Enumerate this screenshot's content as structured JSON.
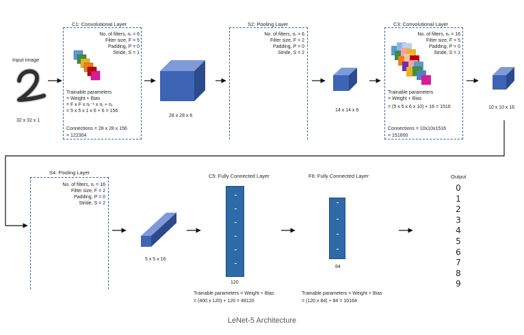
{
  "input": {
    "label": "Input image",
    "size": "32 x 32 x 1"
  },
  "c1": {
    "title": "C1: Convolutional Layer",
    "params": [
      "No. of filters, nᵣ = 6",
      "Filter size, F = 5",
      "Padding, P = 0",
      "Stride, S = 1"
    ],
    "trainable": [
      "Trainable parameters",
      "= Weight + Bias",
      "= F x F x nᵣ⁻¹ x  nᵣ + nᵣ",
      "= 5 x 5 x 1 x 6 + 6 = 156"
    ],
    "connections": [
      "Connections = 28 x 28 x 156",
      "= 122304"
    ],
    "output_size": "28 x 28 x 6"
  },
  "s2": {
    "title": "S2: Pooling Layer",
    "params": [
      "No. of filters, nᵣ = 6",
      "Filter size, F = 2",
      "Padding, P = 0",
      "Stride, S = 2"
    ],
    "output_size": "14 x 14 x 6"
  },
  "c3": {
    "title": "C3: Convolutional Layer",
    "params": [
      "No. of filters, nᵣ = 16",
      "Filter size, F = 5",
      "Padding, P = 0",
      "Stride, S = 1"
    ],
    "trainable": [
      "Trainable parameters",
      "= Weight + Bias",
      "= (5 x 5 x 6 x 10) + 16 = 1516"
    ],
    "connections": [
      "Connections = 10x10x1516",
      "= 151600"
    ],
    "output_size": "10 x 10 x 16"
  },
  "s4": {
    "title": "S4: Pooling Layer",
    "params": [
      "No. of filters, nᵣ = 16",
      "Filter size, F = 2",
      "Padding, P = 0",
      "Stride, S = 2"
    ],
    "output_size": "5 x 5 x 16"
  },
  "c5": {
    "title": "C5: Fully Connected Layer",
    "units": "120",
    "trainable": [
      "Trainable parameters = Weight + Bias",
      "= (400 x 120) + 120 = 48120"
    ]
  },
  "f6": {
    "title": "F6: Fully Connected Layer",
    "units": "84",
    "trainable": [
      "Trainable parameters = Weight + Bias",
      "= (120 x 84) + 84 = 10164"
    ]
  },
  "output": {
    "title": "Output",
    "digits": [
      "0",
      "1",
      "2",
      "3",
      "4",
      "5",
      "6",
      "7",
      "8",
      "9"
    ]
  },
  "caption": "LeNet-5 Architecture",
  "colors": {
    "box_border": "#2f5f9e",
    "cube_front": "#3e64b6",
    "cube_top": "#7e9bd8",
    "cube_side": "#2c4a8c",
    "fc_fill": "#2e6aa8",
    "filter_palette": [
      "#5b9bd5",
      "#3e8e41",
      "#e6b422",
      "#f07c1e",
      "#c00000",
      "#d81b9a",
      "#7030a0",
      "#f4a3a3"
    ]
  }
}
